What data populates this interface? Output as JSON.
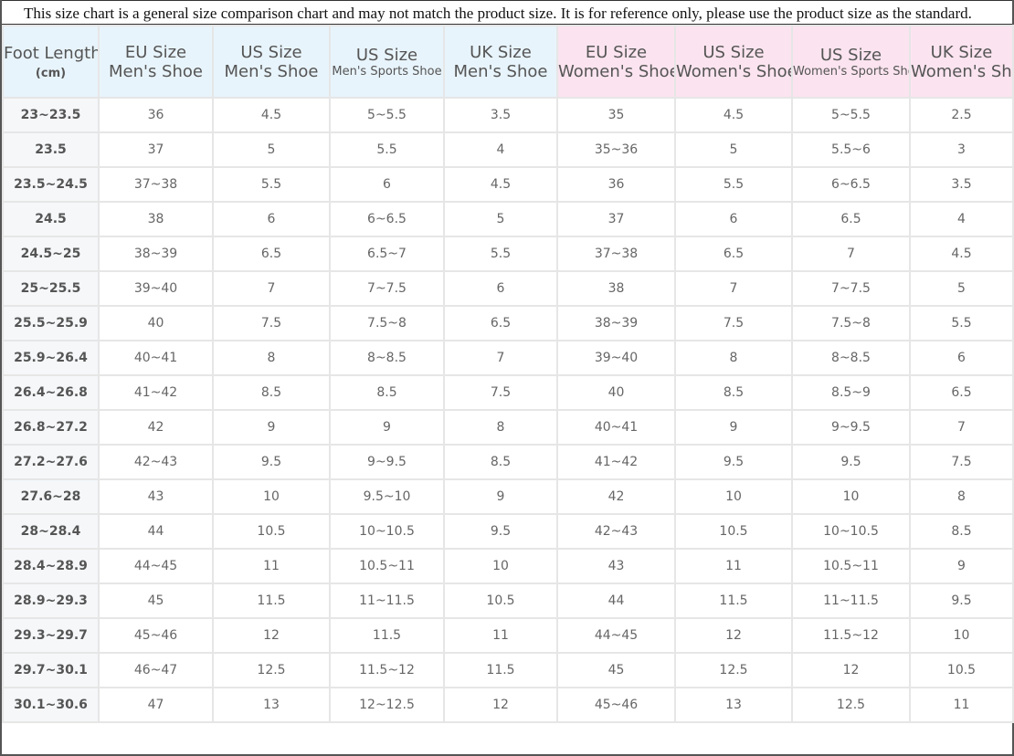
{
  "notice": "This size chart is a general size comparison chart and may not match the product size. It is for reference only, please use the product size as the standard.",
  "table": {
    "header": [
      [
        "Foot Length",
        "(cm)"
      ],
      [
        "EU Size",
        "Men's Shoe"
      ],
      [
        "US Size",
        "Men's Shoe"
      ],
      [
        "US Size",
        "Men's Sports Shoe"
      ],
      [
        "UK Size",
        "Men's Shoe"
      ],
      [
        "EU Size",
        "Women's Shoe"
      ],
      [
        "US Size",
        "Women's Shoe"
      ],
      [
        "US Size",
        "Women's Sports Shoe"
      ],
      [
        "UK Size",
        "Women's Shoe"
      ]
    ],
    "rows": [
      [
        "23~23.5",
        "36",
        "4.5",
        "5~5.5",
        "3.5",
        "35",
        "4.5",
        "5~5.5",
        "2.5"
      ],
      [
        "23.5",
        "37",
        "5",
        "5.5",
        "4",
        "35~36",
        "5",
        "5.5~6",
        "3"
      ],
      [
        "23.5~24.5",
        "37~38",
        "5.5",
        "6",
        "4.5",
        "36",
        "5.5",
        "6~6.5",
        "3.5"
      ],
      [
        "24.5",
        "38",
        "6",
        "6~6.5",
        "5",
        "37",
        "6",
        "6.5",
        "4"
      ],
      [
        "24.5~25",
        "38~39",
        "6.5",
        "6.5~7",
        "5.5",
        "37~38",
        "6.5",
        "7",
        "4.5"
      ],
      [
        "25~25.5",
        "39~40",
        "7",
        "7~7.5",
        "6",
        "38",
        "7",
        "7~7.5",
        "5"
      ],
      [
        "25.5~25.9",
        "40",
        "7.5",
        "7.5~8",
        "6.5",
        "38~39",
        "7.5",
        "7.5~8",
        "5.5"
      ],
      [
        "25.9~26.4",
        "40~41",
        "8",
        "8~8.5",
        "7",
        "39~40",
        "8",
        "8~8.5",
        "6"
      ],
      [
        "26.4~26.8",
        "41~42",
        "8.5",
        "8.5",
        "7.5",
        "40",
        "8.5",
        "8.5~9",
        "6.5"
      ],
      [
        "26.8~27.2",
        "42",
        "9",
        "9",
        "8",
        "40~41",
        "9",
        "9~9.5",
        "7"
      ],
      [
        "27.2~27.6",
        "42~43",
        "9.5",
        "9~9.5",
        "8.5",
        "41~42",
        "9.5",
        "9.5",
        "7.5"
      ],
      [
        "27.6~28",
        "43",
        "10",
        "9.5~10",
        "9",
        "42",
        "10",
        "10",
        "8"
      ],
      [
        "28~28.4",
        "44",
        "10.5",
        "10~10.5",
        "9.5",
        "42~43",
        "10.5",
        "10~10.5",
        "8.5"
      ],
      [
        "28.4~28.9",
        "44~45",
        "11",
        "10.5~11",
        "10",
        "43",
        "11",
        "10.5~11",
        "9"
      ],
      [
        "28.9~29.3",
        "45",
        "11.5",
        "11~11.5",
        "10.5",
        "44",
        "11.5",
        "11~11.5",
        "9.5"
      ],
      [
        "29.3~29.7",
        "45~46",
        "12",
        "11.5",
        "11",
        "44~45",
        "12",
        "11.5~12",
        "10"
      ],
      [
        "29.7~30.1",
        "46~47",
        "12.5",
        "11.5~12",
        "11.5",
        "45",
        "12.5",
        "12",
        "10.5"
      ],
      [
        "30.1~30.6",
        "47",
        "13",
        "12~12.5",
        "12",
        "45~46",
        "13",
        "12.5",
        "11"
      ]
    ]
  }
}
